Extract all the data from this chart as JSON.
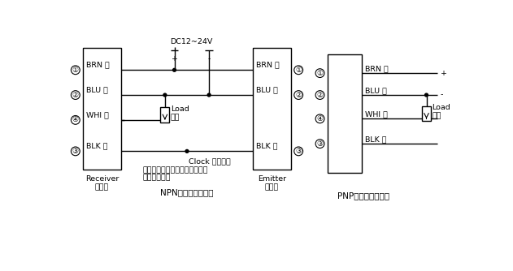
{
  "fig_width": 6.31,
  "fig_height": 3.34,
  "bg_color": "#ffffff",
  "line_color": "#000000",
  "npn_title": "NPN输出型光幕接法",
  "pnp_title": "PNP输出型光幕接法",
  "receiver_label": "Receiver\n接收器",
  "emitter_label": "Emitter\n发射器",
  "dc_label": "DC12~24V",
  "clock_label": "Clock 时钟信号",
  "note_line1": "注意：接收器和发射器的黑线一",
  "note_line2": "定要互相连接",
  "brn_label": "BRN 棕",
  "blu_label": "BLU 兰",
  "whi_label": "WHI 白",
  "blk_label": "BLK 黑",
  "load_label1": "Load",
  "load_label2": "负载",
  "pin1": "①",
  "pin2": "②",
  "pin3": "③",
  "pin4": "④"
}
